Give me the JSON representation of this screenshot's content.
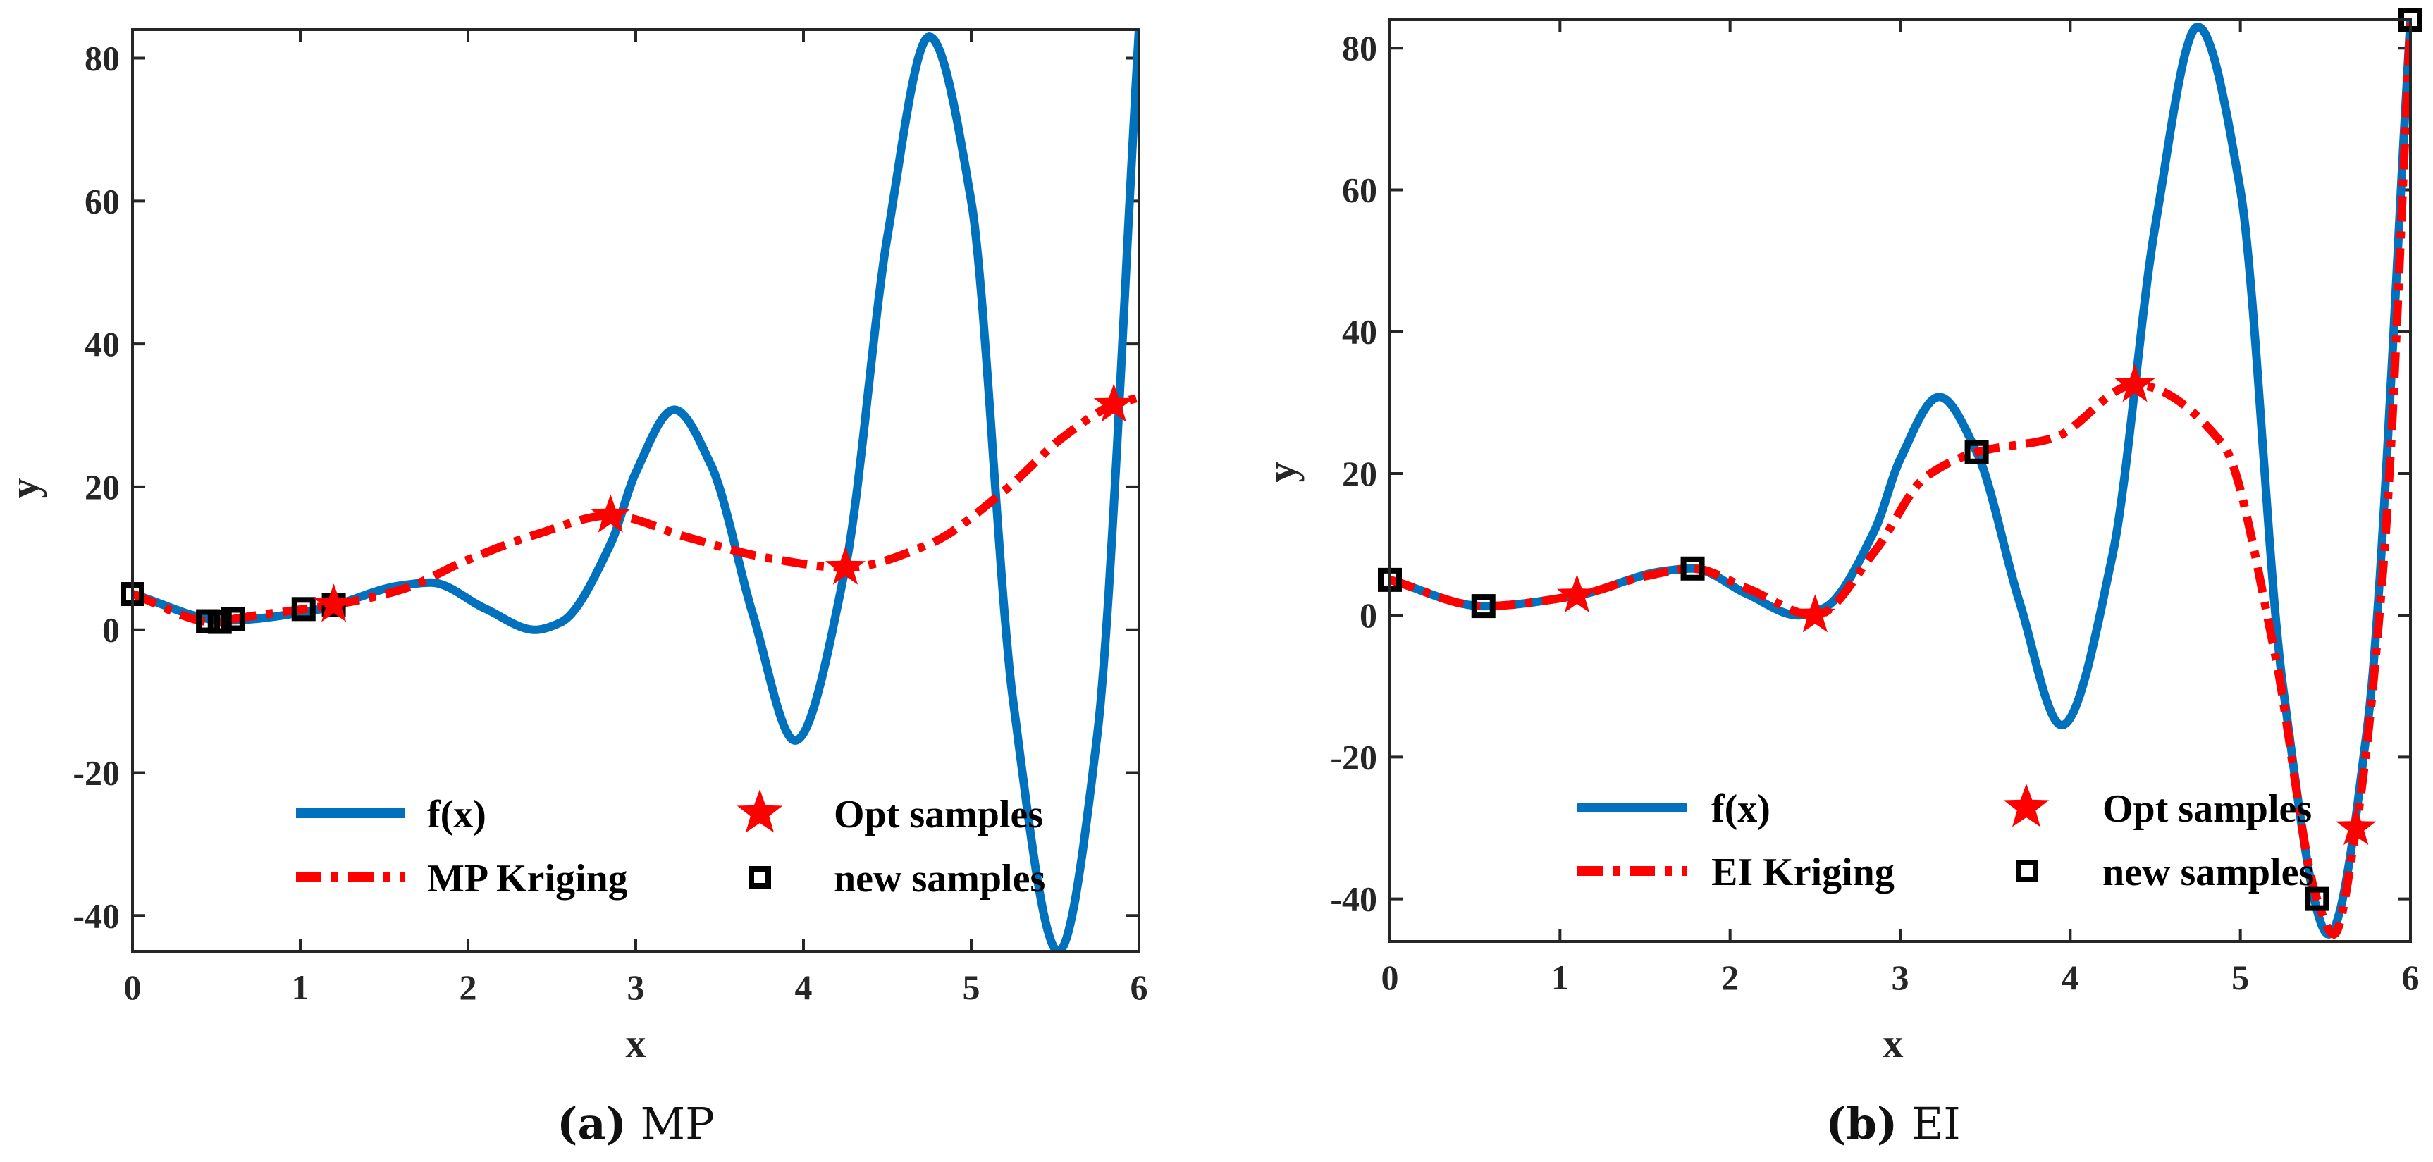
{
  "colors": {
    "fx": "#0072BD",
    "kriging": "#FF0000",
    "star": "#FF0000",
    "sample": "#000000",
    "axis": "#262626"
  },
  "chart_data": [
    {
      "id": "a",
      "type": "line",
      "caption_letter": "(a)",
      "caption_text": "MP",
      "xlabel": "x",
      "ylabel": "y",
      "xlim": [
        0,
        6
      ],
      "ylim": [
        -45,
        84
      ],
      "xticks": [
        0,
        1,
        2,
        3,
        4,
        5,
        6
      ],
      "yticks": [
        -40,
        -20,
        0,
        20,
        40,
        60,
        80
      ],
      "series": [
        {
          "name": "f(x)",
          "style": "solid",
          "color": "#0072BD"
        },
        {
          "name": "MP Kriging",
          "style": "dashdot",
          "color": "#FF0000",
          "knots": [
            [
              0,
              5.0
            ],
            [
              0.45,
              1.1
            ],
            [
              0.5,
              1.0
            ],
            [
              0.6,
              1.5
            ],
            [
              1.02,
              2.9
            ],
            [
              1.2,
              3.5
            ],
            [
              1.6,
              5.6
            ],
            [
              2.0,
              9.8
            ],
            [
              2.4,
              13.3
            ],
            [
              2.85,
              16.0
            ],
            [
              3.3,
              13.0
            ],
            [
              3.8,
              10.0
            ],
            [
              4.25,
              8.7
            ],
            [
              4.75,
              12.0
            ],
            [
              5.2,
              19.5
            ],
            [
              5.55,
              27.0
            ],
            [
              5.85,
              31.5
            ],
            [
              6.0,
              32.5
            ]
          ]
        }
      ],
      "opt_samples": {
        "label": "Opt samples",
        "points": [
          [
            1.2,
            3.5
          ],
          [
            2.85,
            16.0
          ],
          [
            4.25,
            8.7
          ],
          [
            5.85,
            31.5
          ]
        ]
      },
      "new_samples": {
        "label": "new samples",
        "points": [
          [
            0,
            5.0
          ],
          [
            0.45,
            1.2
          ],
          [
            0.52,
            1.1
          ],
          [
            0.6,
            1.5
          ],
          [
            1.02,
            2.9
          ],
          [
            1.2,
            3.5
          ]
        ]
      }
    },
    {
      "id": "b",
      "type": "line",
      "caption_letter": "(b)",
      "caption_text": "EI",
      "xlabel": "x",
      "ylabel": "y",
      "xlim": [
        0,
        6
      ],
      "ylim": [
        -46,
        84
      ],
      "xticks": [
        0,
        1,
        2,
        3,
        4,
        5,
        6
      ],
      "yticks": [
        -40,
        -20,
        0,
        20,
        40,
        60,
        80
      ],
      "series": [
        {
          "name": "f(x)",
          "style": "solid",
          "color": "#0072BD"
        },
        {
          "name": "EI Kriging",
          "style": "dashdot",
          "color": "#FF0000",
          "knots": [
            [
              0,
              5.0
            ],
            [
              0.55,
              1.3
            ],
            [
              1.1,
              2.8
            ],
            [
              1.5,
              5.5
            ],
            [
              1.78,
              6.6
            ],
            [
              2.1,
              3.8
            ],
            [
              2.5,
              0.0
            ],
            [
              2.85,
              9.0
            ],
            [
              3.15,
              19.5
            ],
            [
              3.45,
              23.0
            ],
            [
              3.9,
              25.0
            ],
            [
              4.38,
              32.5
            ],
            [
              4.9,
              24.0
            ],
            [
              5.2,
              -5.0
            ],
            [
              5.45,
              -40.0
            ],
            [
              5.55,
              -45.0
            ],
            [
              5.68,
              -30.0
            ],
            [
              5.85,
              10.0
            ],
            [
              6.0,
              84.0
            ]
          ]
        }
      ],
      "opt_samples": {
        "label": "Opt samples",
        "points": [
          [
            1.1,
            2.8
          ],
          [
            2.5,
            0.0
          ],
          [
            4.38,
            32.5
          ],
          [
            5.68,
            -30.0
          ]
        ]
      },
      "new_samples": {
        "label": "new samples",
        "points": [
          [
            0,
            5.0
          ],
          [
            0.55,
            1.3
          ],
          [
            1.78,
            6.6
          ],
          [
            3.45,
            23.0
          ],
          [
            5.45,
            -40.0
          ],
          [
            6.0,
            84.0
          ]
        ]
      }
    }
  ]
}
